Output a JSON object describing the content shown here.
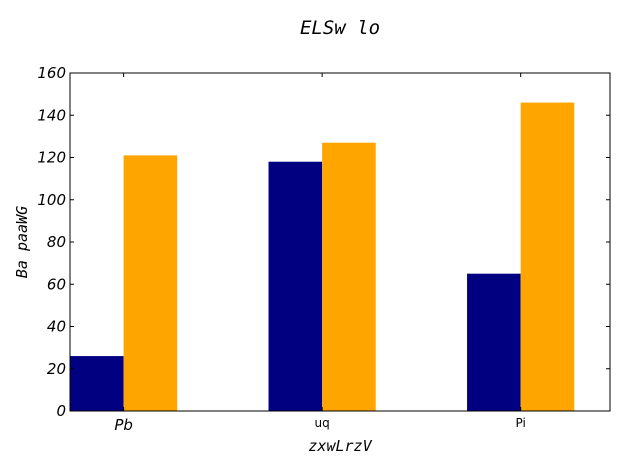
{
  "chart_data": {
    "type": "bar",
    "title": "ELSw lo",
    "xlabel": "zxwLrzV",
    "ylabel": "Ba  paaWG",
    "categories": [
      "Pb",
      "uq",
      "Pi"
    ],
    "series": [
      {
        "values": [
          26,
          118,
          65
        ],
        "color": "#000080"
      },
      {
        "values": [
          121,
          127,
          146
        ],
        "color": "#FFA500"
      }
    ],
    "ylim": [
      0,
      160
    ],
    "yticks": [
      0,
      20,
      40,
      60,
      80,
      100,
      120,
      140,
      160
    ],
    "grid": false,
    "legend": "none"
  }
}
